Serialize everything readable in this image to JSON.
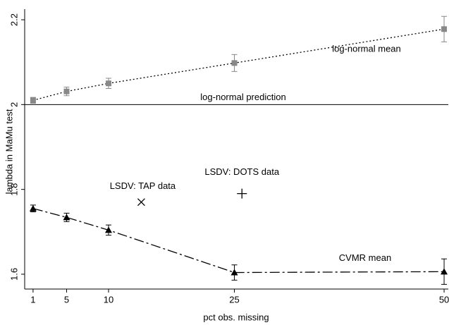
{
  "chart_data": {
    "type": "line",
    "y_label": "lambda in MaMu test",
    "x_label": "pct obs. missing",
    "xlim": [
      0,
      50.5
    ],
    "xticks": [
      1,
      5,
      10,
      25,
      50
    ],
    "ylim": [
      1.565,
      2.225
    ],
    "yticks": [
      1.6,
      1.8,
      2,
      2.2
    ],
    "x": [
      1,
      5,
      10,
      25,
      50
    ],
    "series": [
      {
        "name": "log-normal mean",
        "color": "#888888",
        "marker": "square",
        "dash": "2,3",
        "values": [
          2.01,
          2.031,
          2.05,
          2.098,
          2.178
        ],
        "errors": [
          0.007,
          0.01,
          0.012,
          0.02,
          0.03
        ]
      },
      {
        "name": "CVMR mean",
        "color": "#000000",
        "marker": "triangle",
        "dash": "14,4,3,4",
        "values": [
          1.755,
          1.734,
          1.704,
          1.604,
          1.606
        ],
        "errors": [
          0.008,
          0.01,
          0.012,
          0.018,
          0.03
        ]
      }
    ],
    "reference_line": {
      "name": "log-normal prediction",
      "value": 2
    },
    "points": [
      {
        "name": "LSDV: TAP data",
        "marker": "x",
        "x": 13.9,
        "y": 1.77
      },
      {
        "name": "LSDV: DOTS data",
        "marker": "plus",
        "x": 25.9,
        "y": 1.79
      }
    ]
  }
}
